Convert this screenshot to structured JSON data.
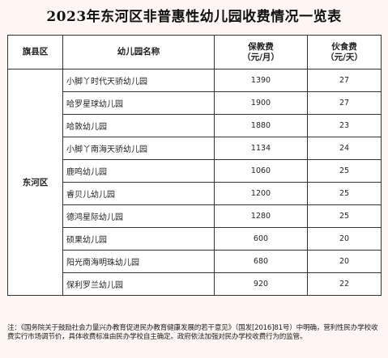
{
  "title": "2023年东河区非普惠性幼儿园收费情况一览表",
  "table": {
    "headers": {
      "district": "旗县区",
      "name": "幼儿园名称",
      "tuition_line1": "保教费",
      "tuition_line2": "（元/月）",
      "meal_line1": "伙食费",
      "meal_line2": "（元/天）"
    },
    "district": "东河区",
    "rows": [
      {
        "name": "小脚丫时代天骄幼儿园",
        "tuition": "1390",
        "meal": "27"
      },
      {
        "name": "哈罗星球幼儿园",
        "tuition": "1900",
        "meal": "27"
      },
      {
        "name": "哈敦幼儿园",
        "tuition": "1880",
        "meal": "23"
      },
      {
        "name": "小脚丫南海天骄幼儿园",
        "tuition": "1134",
        "meal": "24"
      },
      {
        "name": "鹿鸣幼儿园",
        "tuition": "1060",
        "meal": "25"
      },
      {
        "name": "睿贝儿幼儿园",
        "tuition": "1200",
        "meal": "25"
      },
      {
        "name": "德鸿星际幼儿园",
        "tuition": "1280",
        "meal": "25"
      },
      {
        "name": "硕果幼儿园",
        "tuition": "600",
        "meal": "20"
      },
      {
        "name": "阳光南海明珠幼儿园",
        "tuition": "680",
        "meal": "20"
      },
      {
        "name": "保利罗兰幼儿园",
        "tuition": "920",
        "meal": "22"
      }
    ]
  },
  "note": "注：《国务院关于鼓励社会力量兴办教育促进民办教育健康发展的若干意见》（国发[2016]81号）中明确，营利性民办学校收费实行市场调节价，具体收费标准由民办学校自主确定。政府依法加强对民办学校收费行为的监管。"
}
